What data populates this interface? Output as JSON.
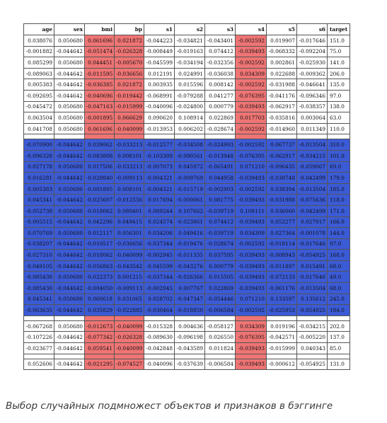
{
  "colors": {
    "feature_subset_highlight": "#ef7474",
    "object_subset_highlight": "#3b5bd6"
  },
  "table": {
    "columns": [
      "age",
      "sex",
      "bmi",
      "bp",
      "s1",
      "s2",
      "s3",
      "s4",
      "s5",
      "s6",
      "target"
    ],
    "red_columns": [
      2,
      3,
      7
    ],
    "blue_rows": [
      9,
      10,
      11,
      12,
      13,
      14,
      15,
      16,
      17,
      18,
      19,
      20,
      21,
      22,
      23,
      24
    ],
    "rows": [
      [
        "0.038076",
        "0.050680",
        "0.061696",
        "0.021872",
        "-0.044223",
        "-0.034821",
        "-0.043401",
        "-0.002592",
        "0.019907",
        "-0.017646",
        "151.0"
      ],
      [
        "-0.001882",
        "-0.044642",
        "-0.051474",
        "-0.026328",
        "-0.008449",
        "-0.019163",
        "0.074412",
        "-0.039493",
        "-0.068332",
        "-0.092204",
        "75.0"
      ],
      [
        "0.085299",
        "0.050680",
        "0.044451",
        "-0.005670",
        "-0.045599",
        "-0.034194",
        "-0.032356",
        "-0.002592",
        "0.002861",
        "-0.025930",
        "141.0"
      ],
      [
        "-0.089063",
        "-0.044642",
        "-0.011595",
        "-0.036656",
        "0.012191",
        "0.024991",
        "-0.036038",
        "0.034309",
        "0.022688",
        "-0.009362",
        "206.0"
      ],
      [
        "0.005383",
        "-0.044642",
        "-0.036385",
        "0.021872",
        "0.003935",
        "0.015596",
        "0.008142",
        "-0.002592",
        "-0.031988",
        "-0.046641",
        "135.0"
      ],
      [
        "-0.092695",
        "-0.044642",
        "-0.040696",
        "-0.019442",
        "-0.068991",
        "-0.079288",
        "0.041277",
        "-0.076395",
        "-0.041176",
        "-0.096346",
        "97.0"
      ],
      [
        "-0.045472",
        "0.050680",
        "-0.047163",
        "-0.015999",
        "-0.040096",
        "-0.024800",
        "0.000779",
        "-0.039493",
        "-0.062917",
        "-0.038357",
        "138.0"
      ],
      [
        "0.063504",
        "0.050680",
        "-0.001895",
        "0.066629",
        "0.090620",
        "0.108914",
        "0.022869",
        "0.017703",
        "-0.035816",
        "0.003064",
        "63.0"
      ],
      [
        "0.041708",
        "0.050680",
        "0.061696",
        "-0.040099",
        "-0.013953",
        "0.006202",
        "-0.028674",
        "-0.002592",
        "-0.014960",
        "0.011349",
        "110.0"
      ],
      [
        "-0.070900",
        "-0.044642",
        "0.039062",
        "-0.033213",
        "-0.012577",
        "-0.034508",
        "-0.024993",
        "-0.002592",
        "0.067737",
        "-0.013504",
        "310.0"
      ],
      [
        "-0.096328",
        "-0.044642",
        "-0.083808",
        "0.008101",
        "-0.103389",
        "-0.090561",
        "-0.013948",
        "-0.076395",
        "-0.062917",
        "-0.034215",
        "101.0"
      ],
      [
        "0.027178",
        "0.050680",
        "0.017506",
        "-0.033213",
        "-0.007073",
        "0.045972",
        "-0.065491",
        "0.071210",
        "-0.096435",
        "-0.059067",
        "69.0"
      ],
      [
        "0.016281",
        "-0.044642",
        "-0.028840",
        "-0.009113",
        "-0.004321",
        "-0.009769",
        "0.044958",
        "-0.039493",
        "-0.030748",
        "-0.042499",
        "179.0"
      ],
      [
        "0.005383",
        "0.050680",
        "-0.001895",
        "0.008101",
        "-0.004321",
        "-0.015719",
        "-0.002903",
        "-0.002592",
        "0.038394",
        "-0.013504",
        "185.0"
      ],
      [
        "0.045341",
        "-0.044642",
        "-0.025607",
        "-0.012556",
        "0.017694",
        "-0.000061",
        "0.081775",
        "-0.039493",
        "-0.031988",
        "-0.075636",
        "118.0"
      ],
      [
        "-0.052738",
        "0.050680",
        "-0.018062",
        "0.080401",
        "0.089244",
        "0.107662",
        "-0.039719",
        "0.108111",
        "0.036060",
        "-0.042499",
        "171.0"
      ],
      [
        "-0.005515",
        "-0.044642",
        "0.042296",
        "0.049415",
        "0.024574",
        "-0.023861",
        "0.074412",
        "-0.039493",
        "0.052277",
        "0.027917",
        "166.0"
      ],
      [
        "0.070769",
        "0.050680",
        "0.012117",
        "0.056301",
        "0.034206",
        "0.049416",
        "-0.039719",
        "0.034309",
        "0.027364",
        "-0.001078",
        "144.0"
      ],
      [
        "-0.038207",
        "-0.044642",
        "-0.010517",
        "-0.036656",
        "-0.037344",
        "-0.019476",
        "-0.028674",
        "-0.002592",
        "-0.018114",
        "-0.017646",
        "97.0"
      ],
      [
        "-0.027310",
        "-0.044642",
        "-0.018062",
        "-0.040099",
        "-0.002945",
        "-0.011335",
        "0.037595",
        "-0.039493",
        "-0.008943",
        "-0.054925",
        "168.0"
      ],
      [
        "-0.049105",
        "-0.044642",
        "-0.056863",
        "-0.043542",
        "-0.045599",
        "-0.043276",
        "0.000779",
        "-0.039493",
        "-0.011897",
        "0.015491",
        "68.0"
      ],
      [
        "-0.085430",
        "0.050680",
        "-0.022373",
        "0.001215",
        "-0.037344",
        "-0.026366",
        "0.015505",
        "-0.039493",
        "-0.072133",
        "-0.017646",
        "49.0"
      ],
      [
        "-0.085430",
        "-0.044642",
        "-0.004050",
        "-0.009113",
        "-0.002945",
        "0.007767",
        "0.022869",
        "-0.039493",
        "-0.061176",
        "-0.013504",
        "68.0"
      ],
      [
        "0.045341",
        "0.050680",
        "0.060618",
        "0.031065",
        "0.028702",
        "-0.047347",
        "-0.054446",
        "0.071210",
        "0.133597",
        "0.135612",
        "245.0"
      ],
      [
        "-0.063635",
        "-0.044642",
        "0.035829",
        "-0.022885",
        "-0.030464",
        "-0.018850",
        "-0.006584",
        "-0.002592",
        "-0.025953",
        "-0.054925",
        "184.0"
      ],
      [
        "-0.067268",
        "0.050680",
        "-0.012673",
        "-0.040099",
        "-0.015328",
        "0.004636",
        "-0.058127",
        "0.034309",
        "0.019196",
        "-0.034215",
        "202.0"
      ],
      [
        "-0.107226",
        "-0.044642",
        "-0.077342",
        "-0.026328",
        "-0.089630",
        "-0.096198",
        "0.026550",
        "-0.076395",
        "-0.042571",
        "-0.005220",
        "137.0"
      ],
      [
        "-0.023677",
        "-0.044642",
        "0.059541",
        "-0.040099",
        "-0.042848",
        "-0.043589",
        "0.011824",
        "-0.039493",
        "-0.015999",
        "0.040343",
        "85.0"
      ],
      [
        "0.052606",
        "-0.044642",
        "-0.021295",
        "-0.074527",
        "-0.040096",
        "-0.037639",
        "-0.006584",
        "-0.039493",
        "-0.000612",
        "-0.054925",
        "131.0"
      ]
    ]
  },
  "caption": "Выбор случайных подмножест объектов и признаков в бэггинге"
}
